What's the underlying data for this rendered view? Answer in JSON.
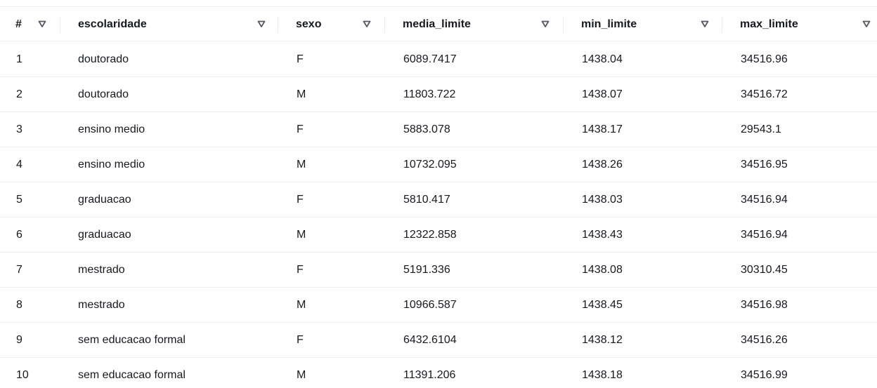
{
  "table": {
    "columns": [
      {
        "key": "index",
        "label": "#"
      },
      {
        "key": "escolaridade",
        "label": "escolaridade"
      },
      {
        "key": "sexo",
        "label": "sexo"
      },
      {
        "key": "media_limite",
        "label": "media_limite"
      },
      {
        "key": "min_limite",
        "label": "min_limite"
      },
      {
        "key": "max_limite",
        "label": "max_limite"
      }
    ],
    "sort_icon": "caret-down-filter-icon",
    "rows": [
      {
        "index": "1",
        "escolaridade": "doutorado",
        "sexo": "F",
        "media_limite": "6089.7417",
        "min_limite": "1438.04",
        "max_limite": "34516.96"
      },
      {
        "index": "2",
        "escolaridade": "doutorado",
        "sexo": "M",
        "media_limite": "11803.722",
        "min_limite": "1438.07",
        "max_limite": "34516.72"
      },
      {
        "index": "3",
        "escolaridade": "ensino medio",
        "sexo": "F",
        "media_limite": "5883.078",
        "min_limite": "1438.17",
        "max_limite": "29543.1"
      },
      {
        "index": "4",
        "escolaridade": "ensino medio",
        "sexo": "M",
        "media_limite": "10732.095",
        "min_limite": "1438.26",
        "max_limite": "34516.95"
      },
      {
        "index": "5",
        "escolaridade": "graduacao",
        "sexo": "F",
        "media_limite": "5810.417",
        "min_limite": "1438.03",
        "max_limite": "34516.94"
      },
      {
        "index": "6",
        "escolaridade": "graduacao",
        "sexo": "M",
        "media_limite": "12322.858",
        "min_limite": "1438.43",
        "max_limite": "34516.94"
      },
      {
        "index": "7",
        "escolaridade": "mestrado",
        "sexo": "F",
        "media_limite": "5191.336",
        "min_limite": "1438.08",
        "max_limite": "30310.45"
      },
      {
        "index": "8",
        "escolaridade": "mestrado",
        "sexo": "M",
        "media_limite": "10966.587",
        "min_limite": "1438.45",
        "max_limite": "34516.98"
      },
      {
        "index": "9",
        "escolaridade": "sem educacao formal",
        "sexo": "F",
        "media_limite": "6432.6104",
        "min_limite": "1438.12",
        "max_limite": "34516.26"
      },
      {
        "index": "10",
        "escolaridade": "sem educacao formal",
        "sexo": "M",
        "media_limite": "11391.206",
        "min_limite": "1438.18",
        "max_limite": "34516.99"
      }
    ]
  }
}
